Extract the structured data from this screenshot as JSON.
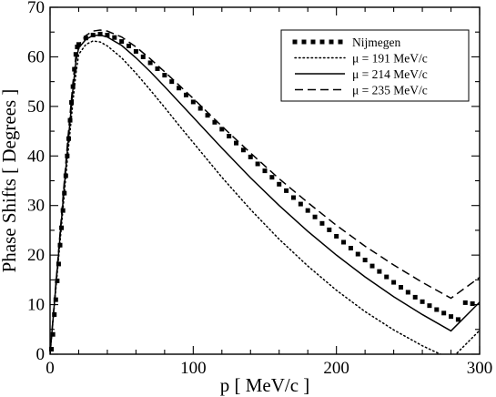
{
  "chart_data": {
    "type": "line",
    "xlabel": "p [ MeV/c ]",
    "ylabel": "Phase Shifts [ Degrees ]",
    "xlim": [
      0,
      300
    ],
    "ylim": [
      0,
      70
    ],
    "x_ticks": [
      0,
      100,
      200,
      300
    ],
    "y_ticks": [
      0,
      10,
      20,
      30,
      40,
      50,
      60,
      70
    ],
    "grid": false,
    "legend_position": "top-right",
    "series": [
      {
        "name": "Nijmegen",
        "style": "dotted-squares",
        "color": "#000000",
        "x": [
          1,
          2,
          3,
          4,
          5,
          6,
          7,
          8,
          9,
          10,
          11,
          12,
          13,
          14,
          15,
          16,
          17,
          18,
          19,
          20,
          25,
          30,
          35,
          40,
          45,
          50,
          55,
          60,
          65,
          70,
          75,
          80,
          85,
          90,
          95,
          100,
          105,
          110,
          115,
          120,
          125,
          130,
          135,
          140,
          145,
          150,
          155,
          160,
          165,
          170,
          175,
          180,
          185,
          190,
          195,
          200,
          205,
          210,
          215,
          220,
          225,
          230,
          235,
          240,
          245,
          250,
          255,
          260,
          265,
          270,
          275,
          280,
          285,
          290,
          295
        ],
        "y": [
          1.0,
          4.0,
          8.0,
          11.0,
          14.8,
          18.2,
          22.0,
          25.5,
          29.0,
          32.5,
          36.0,
          40.0,
          43.5,
          47.2,
          50.8,
          54.0,
          57.5,
          60.5,
          62.0,
          62.5,
          63.8,
          64.4,
          64.6,
          64.4,
          63.9,
          63.1,
          62.2,
          61.1,
          60.0,
          58.8,
          57.6,
          56.3,
          55.0,
          53.7,
          52.3,
          50.9,
          49.6,
          48.2,
          46.8,
          45.4,
          44.0,
          42.6,
          41.2,
          39.8,
          38.4,
          37.0,
          35.7,
          34.3,
          33.0,
          31.6,
          30.3,
          29.0,
          27.7,
          26.4,
          25.1,
          23.8,
          22.6,
          21.4,
          20.2,
          19.0,
          17.8,
          16.7,
          15.6,
          14.5,
          13.5,
          12.5,
          11.5,
          10.6,
          9.8,
          9.0,
          8.3,
          7.6,
          7.0,
          10.4,
          10.2
        ]
      },
      {
        "name": "μ = 191 MeV/c",
        "style": "dotted",
        "color": "#000000",
        "x": [
          0,
          2,
          4,
          6,
          8,
          10,
          12,
          14,
          16,
          18,
          20,
          25,
          30,
          35,
          40,
          50,
          60,
          70,
          80,
          90,
          100,
          120,
          140,
          160,
          180,
          200,
          220,
          240,
          260,
          280,
          300
        ],
        "y": [
          0,
          6.5,
          13.0,
          19.5,
          26.0,
          32.5,
          39.0,
          45.0,
          51.0,
          56.5,
          60.5,
          62.5,
          63.2,
          63.0,
          62.2,
          59.8,
          56.7,
          53.3,
          49.8,
          46.2,
          42.7,
          35.7,
          29.2,
          23.2,
          17.8,
          12.9,
          8.6,
          4.9,
          1.7,
          -1.0,
          4.8
        ]
      },
      {
        "name": "μ = 214 MeV/c",
        "style": "solid",
        "color": "#000000",
        "x": [
          0,
          2,
          4,
          6,
          8,
          10,
          12,
          14,
          16,
          18,
          20,
          25,
          30,
          35,
          40,
          50,
          60,
          70,
          80,
          90,
          100,
          120,
          140,
          160,
          180,
          200,
          220,
          240,
          260,
          280,
          300
        ],
        "y": [
          0,
          6.8,
          13.6,
          20.4,
          27.2,
          34.0,
          40.8,
          47.2,
          53.5,
          59.0,
          61.8,
          63.5,
          64.3,
          64.4,
          64.0,
          62.3,
          59.8,
          57.0,
          54.0,
          50.9,
          47.8,
          41.6,
          35.6,
          30.0,
          24.8,
          20.0,
          15.6,
          11.6,
          8.0,
          4.7,
          10.5
        ]
      },
      {
        "name": "μ = 235 MeV/c",
        "style": "dashed",
        "color": "#000000",
        "x": [
          0,
          2,
          4,
          6,
          8,
          10,
          12,
          14,
          16,
          18,
          20,
          25,
          30,
          35,
          40,
          50,
          60,
          70,
          80,
          90,
          100,
          120,
          140,
          160,
          180,
          200,
          220,
          240,
          260,
          280,
          300
        ],
        "y": [
          0,
          7.0,
          14.0,
          21.0,
          28.0,
          35.0,
          42.0,
          48.5,
          54.8,
          60.0,
          62.4,
          64.3,
          65.2,
          65.4,
          65.2,
          64.0,
          62.0,
          59.6,
          57.0,
          54.3,
          51.6,
          46.0,
          40.6,
          35.4,
          30.6,
          26.0,
          21.8,
          18.0,
          14.5,
          11.3,
          15.5
        ]
      }
    ]
  }
}
